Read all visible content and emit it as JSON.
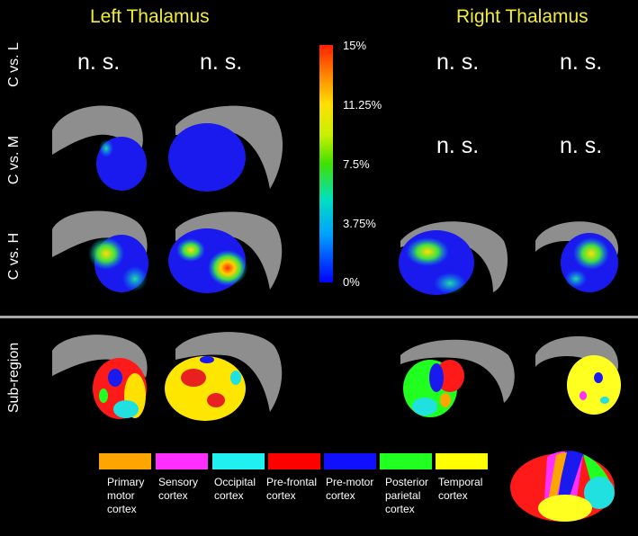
{
  "titles": {
    "left": "Left Thalamus",
    "right": "Right Thalamus"
  },
  "row_labels": [
    "C vs. L",
    "C vs. M",
    "C vs. H",
    "Sub-region"
  ],
  "not_significant": "n. s.",
  "colorbar": {
    "ticks": [
      "15%",
      "11.25%",
      "7.5%",
      "3.75%",
      "0%"
    ],
    "colors": [
      "#0000ff",
      "#00a0ff",
      "#00e0c0",
      "#40e000",
      "#c8f000",
      "#ffe000",
      "#ff8000",
      "#ff2000"
    ]
  },
  "legend": [
    {
      "label": "Primary motor cortex",
      "color": "#ffa500"
    },
    {
      "label": "Sensory cortex",
      "color": "#ff30ff"
    },
    {
      "label": "Occipital cortex",
      "color": "#20f0f0"
    },
    {
      "label": "Pre-frontal cortex",
      "color": "#ff0000"
    },
    {
      "label": "Pre-motor cortex",
      "color": "#1010ff"
    },
    {
      "label": "Posterior parietal cortex",
      "color": "#20ff20"
    },
    {
      "label": "Temporal cortex",
      "color": "#ffff00"
    }
  ]
}
